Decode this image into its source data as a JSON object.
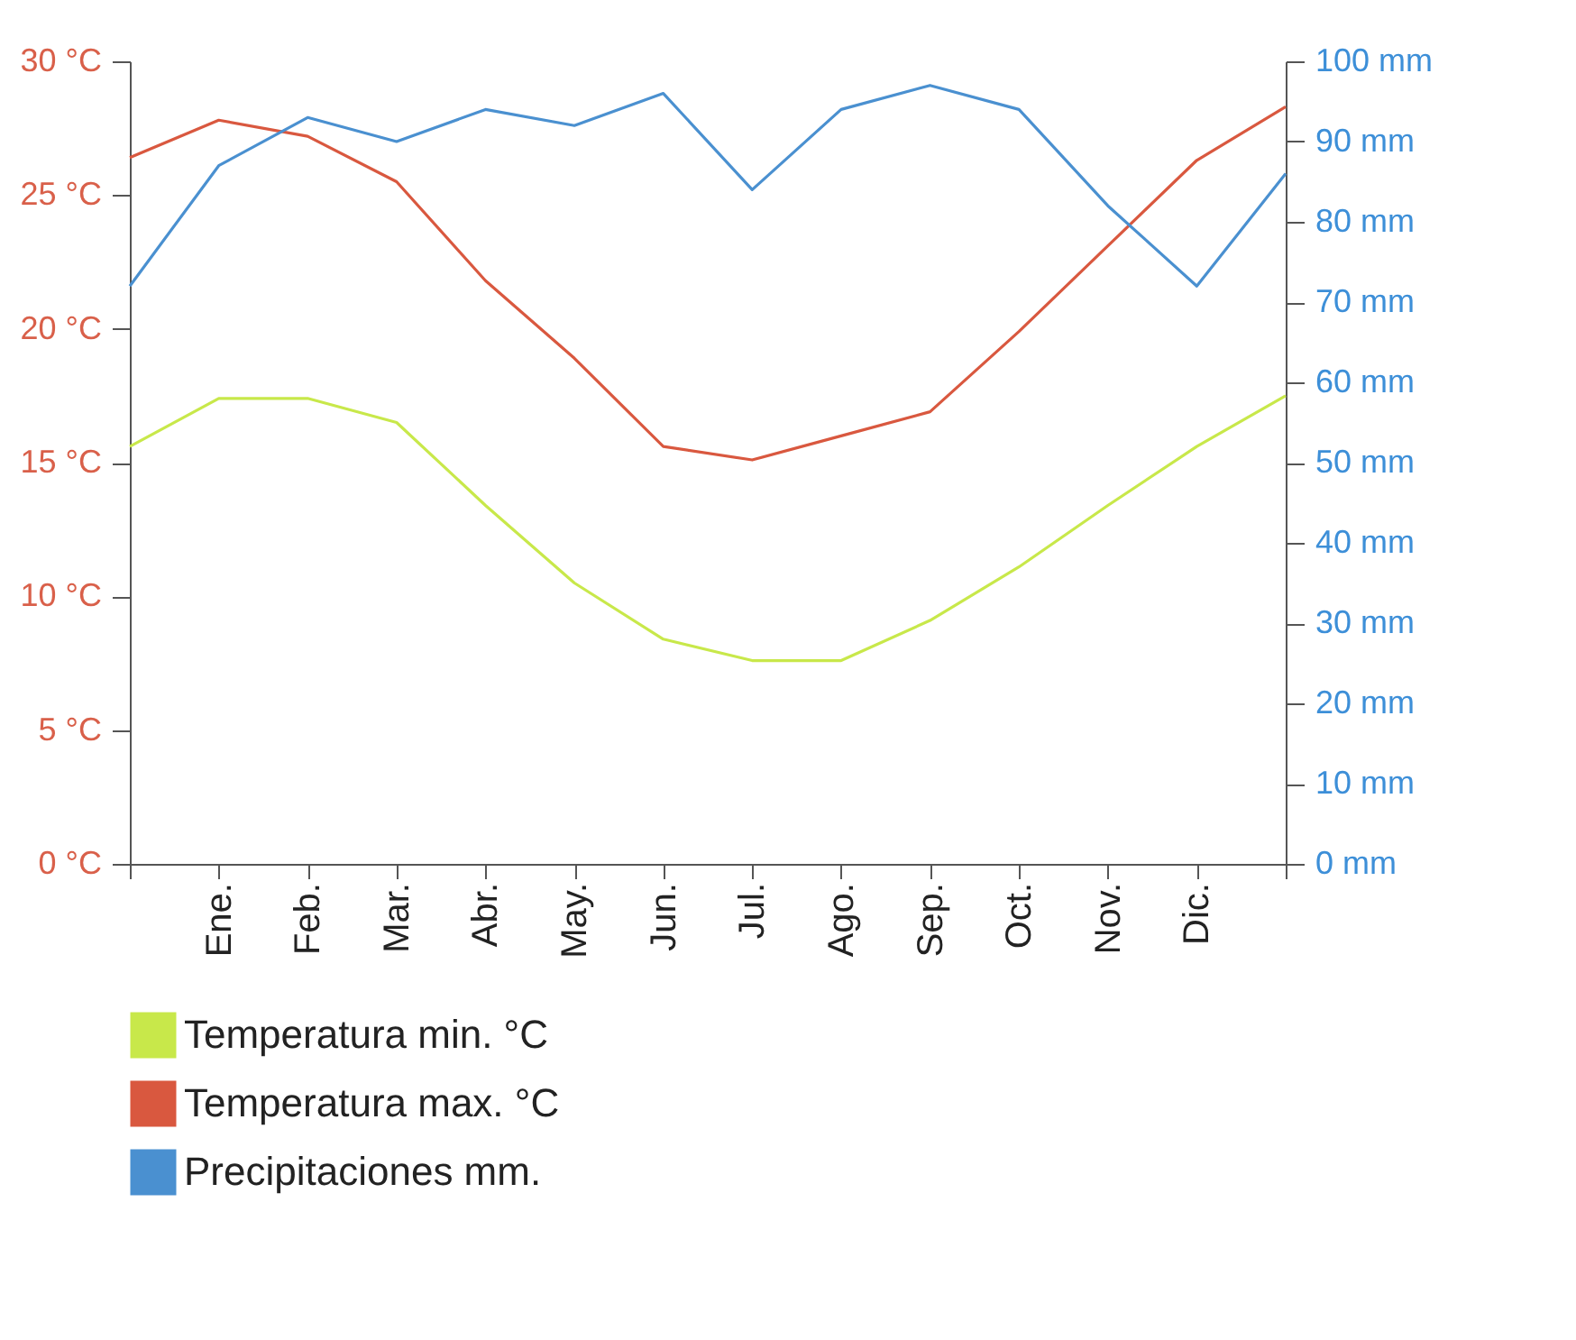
{
  "chart_data": {
    "type": "line",
    "categories": [
      null,
      "Ene.",
      "Feb.",
      "Mar.",
      "Abr.",
      "May.",
      "Jun.",
      "Jul.",
      "Ago.",
      "Sep.",
      "Oct.",
      "Nov.",
      "Dic.",
      null
    ],
    "series": [
      {
        "name": "Temperatura min. °C",
        "color": "#c8e84a",
        "values": [
          15.6,
          17.4,
          17.4,
          16.5,
          13.4,
          10.5,
          8.4,
          7.6,
          7.6,
          9.1,
          11.1,
          13.4,
          15.6,
          17.5
        ]
      },
      {
        "name": "Temperatura max. °C",
        "color": "#d9583f",
        "values": [
          26.4,
          27.8,
          27.2,
          25.5,
          21.8,
          18.9,
          15.6,
          15.1,
          16.0,
          16.9,
          19.9,
          23.1,
          26.3,
          28.3
        ]
      },
      {
        "name": "Precipitaciones mm.",
        "color": "#4a90d0",
        "axis": "y2",
        "values": [
          72,
          87,
          93,
          90,
          94,
          92,
          96,
          84,
          94,
          97,
          94,
          82,
          72,
          86
        ]
      }
    ],
    "ylim": [
      0,
      30
    ],
    "yticks": [
      {
        "value": 0,
        "label": "0 °C"
      },
      {
        "value": 5,
        "label": "5 °C"
      },
      {
        "value": 10,
        "label": "10 °C"
      },
      {
        "value": 15,
        "label": "15 °C"
      },
      {
        "value": 20,
        "label": "20 °C"
      },
      {
        "value": 25,
        "label": "25 °C"
      },
      {
        "value": 30,
        "label": "30 °C"
      }
    ],
    "y2lim": [
      0,
      100
    ],
    "y2ticks": [
      {
        "value": 0,
        "label": "0 mm"
      },
      {
        "value": 10,
        "label": "10 mm"
      },
      {
        "value": 20,
        "label": "20 mm"
      },
      {
        "value": 30,
        "label": "30 mm"
      },
      {
        "value": 40,
        "label": "40 mm"
      },
      {
        "value": 50,
        "label": "50 mm"
      },
      {
        "value": 60,
        "label": "60 mm"
      },
      {
        "value": 70,
        "label": "70 mm"
      },
      {
        "value": 80,
        "label": "80 mm"
      },
      {
        "value": 90,
        "label": "90 mm"
      },
      {
        "value": 100,
        "label": "100 mm"
      }
    ],
    "grid": false,
    "legend": "bottom",
    "marker": "none",
    "line_style": "solid"
  }
}
